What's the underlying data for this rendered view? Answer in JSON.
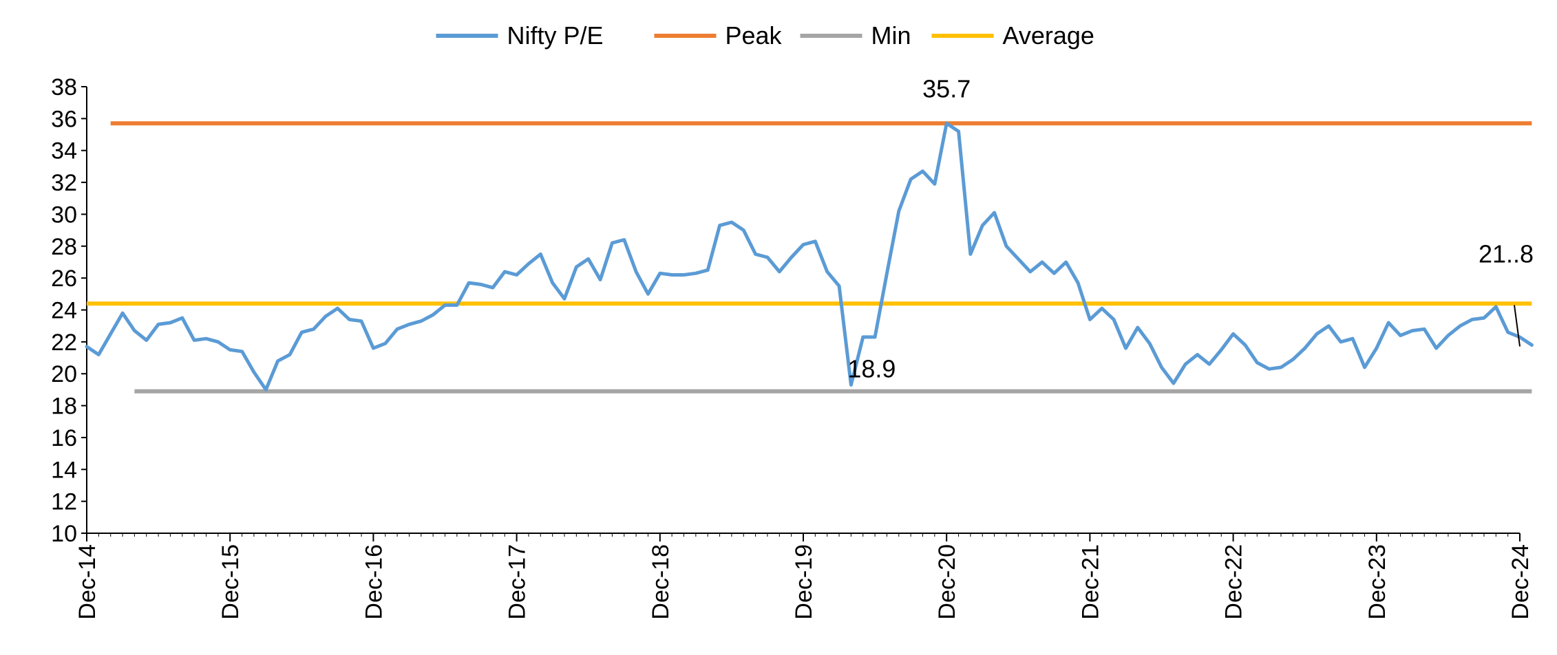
{
  "chart_data": {
    "type": "line",
    "title": "",
    "xlabel": "",
    "ylabel": "",
    "ylim": [
      10,
      38
    ],
    "yticks": [
      10,
      12,
      14,
      16,
      18,
      20,
      22,
      24,
      26,
      28,
      30,
      32,
      34,
      36,
      38
    ],
    "x_tick_labels": [
      "Dec-14",
      "Dec-15",
      "Dec-16",
      "Dec-17",
      "Dec-18",
      "Dec-19",
      "Dec-20",
      "Dec-21",
      "Dec-22",
      "Dec-23",
      "Dec-24"
    ],
    "grid": false,
    "legend_position": "top",
    "series": [
      {
        "name": "Nifty P/E",
        "color": "#5b9bd5",
        "x": [
          "Dec-14",
          "Jan-15",
          "Feb-15",
          "Mar-15",
          "Apr-15",
          "May-15",
          "Jun-15",
          "Jul-15",
          "Aug-15",
          "Sep-15",
          "Oct-15",
          "Nov-15",
          "Dec-15",
          "Jan-16",
          "Feb-16",
          "Mar-16",
          "Apr-16",
          "May-16",
          "Jun-16",
          "Jul-16",
          "Aug-16",
          "Sep-16",
          "Oct-16",
          "Nov-16",
          "Dec-16",
          "Jan-17",
          "Feb-17",
          "Mar-17",
          "Apr-17",
          "May-17",
          "Jun-17",
          "Jul-17",
          "Aug-17",
          "Sep-17",
          "Oct-17",
          "Nov-17",
          "Dec-17",
          "Jan-18",
          "Feb-18",
          "Mar-18",
          "Apr-18",
          "May-18",
          "Jun-18",
          "Jul-18",
          "Aug-18",
          "Sep-18",
          "Oct-18",
          "Nov-18",
          "Dec-18",
          "Jan-19",
          "Feb-19",
          "Mar-19",
          "Apr-19",
          "May-19",
          "Jun-19",
          "Jul-19",
          "Aug-19",
          "Sep-19",
          "Oct-19",
          "Nov-19",
          "Dec-19",
          "Jan-20",
          "Feb-20",
          "Mar-20",
          "Apr-20",
          "May-20",
          "Jun-20",
          "Jul-20",
          "Aug-20",
          "Sep-20",
          "Oct-20",
          "Nov-20",
          "Dec-20",
          "Jan-21",
          "Feb-21",
          "Mar-21",
          "Apr-21",
          "May-21",
          "Jun-21",
          "Jul-21",
          "Aug-21",
          "Sep-21",
          "Oct-21",
          "Nov-21",
          "Dec-21",
          "Jan-22",
          "Feb-22",
          "Mar-22",
          "Apr-22",
          "May-22",
          "Jun-22",
          "Jul-22",
          "Aug-22",
          "Sep-22",
          "Oct-22",
          "Nov-22",
          "Dec-22",
          "Jan-23",
          "Feb-23",
          "Mar-23",
          "Apr-23",
          "May-23",
          "Jun-23",
          "Jul-23",
          "Aug-23",
          "Sep-23",
          "Oct-23",
          "Nov-23",
          "Dec-23",
          "Jan-24",
          "Feb-24",
          "Mar-24",
          "Apr-24",
          "May-24",
          "Jun-24",
          "Jul-24",
          "Aug-24",
          "Sep-24",
          "Oct-24",
          "Nov-24",
          "Dec-24",
          "Jan-25"
        ],
        "values": [
          21.7,
          21.2,
          22.5,
          23.8,
          22.7,
          22.1,
          23.1,
          23.2,
          23.5,
          22.1,
          22.2,
          22.0,
          21.5,
          21.4,
          20.1,
          19.0,
          20.8,
          21.2,
          22.6,
          22.8,
          23.6,
          24.1,
          23.4,
          23.3,
          21.6,
          21.9,
          22.8,
          23.1,
          23.3,
          23.7,
          24.3,
          24.3,
          25.7,
          25.6,
          25.4,
          26.4,
          26.2,
          26.9,
          27.5,
          25.7,
          24.7,
          26.7,
          27.2,
          25.9,
          28.2,
          28.4,
          26.4,
          25.0,
          26.3,
          26.2,
          26.2,
          26.3,
          26.5,
          29.3,
          29.5,
          29.0,
          27.5,
          27.3,
          26.4,
          27.3,
          28.1,
          28.3,
          26.4,
          25.5,
          19.3,
          22.3,
          22.3,
          26.3,
          30.2,
          32.2,
          32.7,
          31.9,
          35.7,
          35.2,
          27.5,
          29.3,
          30.1,
          28.0,
          27.2,
          26.4,
          27.0,
          26.3,
          27.0,
          25.7,
          23.4,
          24.1,
          23.4,
          21.6,
          22.9,
          21.9,
          20.4,
          19.4,
          20.6,
          21.2,
          20.6,
          21.5,
          22.5,
          21.8,
          20.7,
          20.3,
          20.4,
          20.9,
          21.6,
          22.5,
          23.0,
          22.0,
          22.2,
          20.4,
          21.6,
          23.2,
          22.4,
          22.7,
          22.8,
          21.6,
          22.4,
          23.0,
          23.4,
          23.5,
          24.2,
          22.6,
          22.3,
          21.8
        ]
      },
      {
        "name": "Peak",
        "color": "#ed7d31",
        "value": 35.7,
        "x_start": "Feb-15",
        "x_end": "Jan-25"
      },
      {
        "name": "Min",
        "color": "#a5a5a5",
        "value": 18.9,
        "x_start": "Apr-15",
        "x_end": "Jan-25"
      },
      {
        "name": "Average",
        "color": "#ffc000",
        "value": 24.4,
        "x_start": "Dec-14",
        "x_end": "Jan-25"
      }
    ],
    "annotations": [
      {
        "text": "35.7",
        "x": "Dec-20",
        "y": 35.7
      },
      {
        "text": "18.9",
        "x": "Apr-20",
        "y": 18.9
      },
      {
        "text": "21..8",
        "x": "Dec-24",
        "y": 21.8
      }
    ]
  }
}
